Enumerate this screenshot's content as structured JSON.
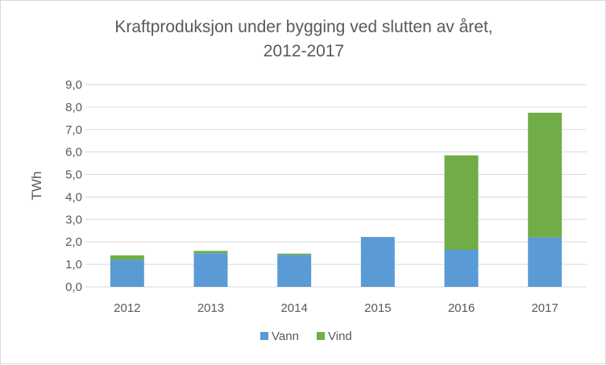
{
  "chart_data": {
    "type": "bar",
    "stacked": true,
    "title_lines": [
      "Kraftproduksjon under bygging ved slutten av året,",
      "2012-2017"
    ],
    "xlabel": "",
    "ylabel": "TWh",
    "categories": [
      "2012",
      "2013",
      "2014",
      "2015",
      "2016",
      "2017"
    ],
    "series": [
      {
        "name": "Vann",
        "color": "#5b9bd5",
        "values": [
          1.2,
          1.5,
          1.42,
          2.22,
          1.65,
          2.2
        ]
      },
      {
        "name": "Vind",
        "color": "#70ad47",
        "values": [
          0.2,
          0.1,
          0.06,
          0.0,
          4.2,
          5.55
        ]
      }
    ],
    "ylim": [
      0,
      9
    ],
    "y_ticks": [
      "0,0",
      "1,0",
      "2,0",
      "3,0",
      "4,0",
      "5,0",
      "6,0",
      "7,0",
      "8,0",
      "9,0"
    ],
    "grid": true,
    "gridline_color": "#d9d9d9",
    "legend_position": "bottom"
  }
}
